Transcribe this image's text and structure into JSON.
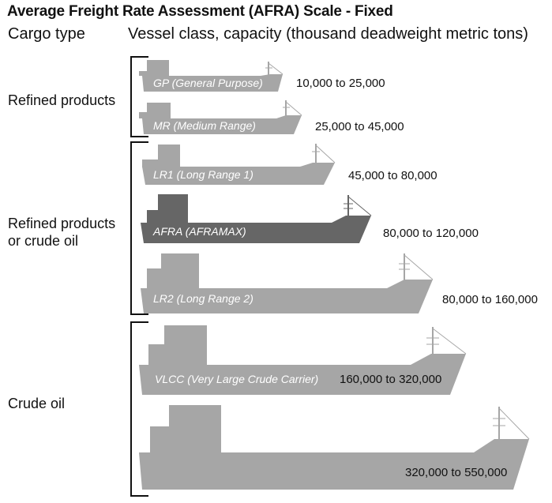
{
  "title": "Average Freight Rate Assessment (AFRA) Scale - Fixed",
  "headers": {
    "cargo_type": "Cargo type",
    "vessel_class": "Vessel class, capacity (thousand deadweight metric tons)"
  },
  "cargo_groups": [
    {
      "label": "Refined products"
    },
    {
      "label": "Refined products or crude oil"
    },
    {
      "label": "Crude oil"
    }
  ],
  "vessels": [
    {
      "label": "GP (General Purpose)",
      "capacity": "10,000 to 25,000",
      "color": "#a6a6a6"
    },
    {
      "label": "MR (Medium Range)",
      "capacity": "25,000 to 45,000",
      "color": "#a6a6a6"
    },
    {
      "label": "LR1 (Long Range 1)",
      "capacity": "45,000 to 80,000",
      "color": "#a6a6a6"
    },
    {
      "label": "AFRA (AFRAMAX)",
      "capacity": "80,000 to 120,000",
      "color": "#666666"
    },
    {
      "label": "LR2 (Long Range 2)",
      "capacity": "80,000 to 160,000",
      "color": "#a6a6a6"
    },
    {
      "label": "VLCC (Very Large Crude Carrier)",
      "capacity": "160,000 to 320,000",
      "color": "#a6a6a6"
    },
    {
      "label": "",
      "capacity": "320,000 to 550,000",
      "color": "#a6a6a6"
    }
  ]
}
